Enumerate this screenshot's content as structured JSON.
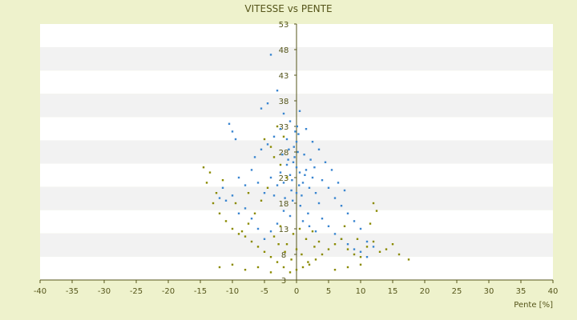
{
  "chart_data": {
    "type": "scatter",
    "title": "VITESSE vs PENTE",
    "xlabel": "Pente [%]",
    "ylabel": "",
    "xlim": [
      -40,
      40
    ],
    "ylim": [
      3,
      53
    ],
    "x_ticks": [
      -40,
      -35,
      -30,
      -25,
      -20,
      -15,
      -10,
      -5,
      0,
      5,
      10,
      15,
      20,
      25,
      30,
      35,
      40
    ],
    "y_ticks": [
      3,
      8,
      13,
      18,
      23,
      28,
      33,
      38,
      43,
      48,
      53
    ],
    "y_tick_labels": [
      "3",
      "8",
      "13",
      "18",
      "23",
      "28",
      "33",
      "38",
      "43",
      "48",
      "53"
    ],
    "grid": "alternating horizontal bands",
    "legend": "none",
    "colors": {
      "background": "#eef2cc",
      "band_light": "#ffffff",
      "band_dark": "#f2f2f2",
      "axis": "#55551a"
    },
    "series": [
      {
        "color": "#3a86d0",
        "points": [
          [
            0.0,
            25.0
          ],
          [
            0.5,
            24.0
          ],
          [
            -0.5,
            26.0
          ],
          [
            1.0,
            22.0
          ],
          [
            -1.0,
            23.5
          ],
          [
            0.2,
            28.0
          ],
          [
            -0.3,
            27.0
          ],
          [
            1.5,
            24.5
          ],
          [
            -1.5,
            25.5
          ],
          [
            2.0,
            21.0
          ],
          [
            -2.0,
            22.0
          ],
          [
            0.8,
            19.5
          ],
          [
            -0.8,
            20.5
          ],
          [
            2.5,
            23.0
          ],
          [
            -2.5,
            24.0
          ],
          [
            0.0,
            30.0
          ],
          [
            0.3,
            31.5
          ],
          [
            -0.4,
            29.0
          ],
          [
            1.2,
            27.5
          ],
          [
            -1.2,
            28.5
          ],
          [
            3.0,
            20.0
          ],
          [
            -3.0,
            21.5
          ],
          [
            0.6,
            17.5
          ],
          [
            -0.6,
            18.5
          ],
          [
            1.8,
            16.0
          ],
          [
            -1.8,
            19.0
          ],
          [
            4.0,
            22.5
          ],
          [
            -4.0,
            23.0
          ],
          [
            0.1,
            33.0
          ],
          [
            -0.2,
            32.0
          ],
          [
            2.2,
            26.5
          ],
          [
            -2.2,
            27.5
          ],
          [
            3.5,
            18.0
          ],
          [
            -3.5,
            19.5
          ],
          [
            5.0,
            21.0
          ],
          [
            -5.0,
            20.0
          ],
          [
            6.0,
            19.0
          ],
          [
            7.0,
            17.5
          ],
          [
            8.0,
            16.0
          ],
          [
            9.0,
            14.5
          ],
          [
            10.0,
            13.0
          ],
          [
            11.0,
            10.5
          ],
          [
            -6.0,
            22.0
          ],
          [
            -7.0,
            24.5
          ],
          [
            -8.0,
            21.5
          ],
          [
            -9.0,
            23.0
          ],
          [
            -10.0,
            19.5
          ],
          [
            -11.0,
            18.5
          ],
          [
            -11.5,
            21.0
          ],
          [
            -12.0,
            19.0
          ],
          [
            -10.5,
            33.5
          ],
          [
            -10.0,
            32.0
          ],
          [
            -9.5,
            30.5
          ],
          [
            -5.5,
            36.5
          ],
          [
            -4.5,
            37.5
          ],
          [
            -3.0,
            40.0
          ],
          [
            -4.0,
            47.0
          ],
          [
            -2.0,
            35.5
          ],
          [
            -1.0,
            34.0
          ],
          [
            0.5,
            36.0
          ],
          [
            1.5,
            32.5
          ],
          [
            2.5,
            30.0
          ],
          [
            3.5,
            28.5
          ],
          [
            4.5,
            26.0
          ],
          [
            5.5,
            24.5
          ],
          [
            6.5,
            22.0
          ],
          [
            7.5,
            20.5
          ],
          [
            4.0,
            15.0
          ],
          [
            5.0,
            13.5
          ],
          [
            6.0,
            12.0
          ],
          [
            7.0,
            11.0
          ],
          [
            8.0,
            10.0
          ],
          [
            9.0,
            9.0
          ],
          [
            10.0,
            8.5
          ],
          [
            11.0,
            7.5
          ],
          [
            12.0,
            9.5
          ],
          [
            3.0,
            12.5
          ],
          [
            2.0,
            13.5
          ],
          [
            1.0,
            14.5
          ],
          [
            -1.0,
            15.5
          ],
          [
            -2.0,
            16.5
          ],
          [
            -3.0,
            14.0
          ],
          [
            -4.0,
            12.5
          ],
          [
            -5.0,
            11.0
          ],
          [
            -6.0,
            13.0
          ],
          [
            -7.0,
            15.0
          ],
          [
            -8.0,
            17.0
          ],
          [
            -9.0,
            16.0
          ],
          [
            -6.5,
            27.0
          ],
          [
            -5.5,
            28.5
          ],
          [
            -4.5,
            29.5
          ],
          [
            -3.5,
            31.0
          ],
          [
            -2.5,
            32.5
          ],
          [
            -1.5,
            30.5
          ],
          [
            0.0,
            20.0
          ],
          [
            0.4,
            21.5
          ],
          [
            -0.7,
            22.5
          ],
          [
            1.3,
            23.5
          ],
          [
            -1.3,
            26.5
          ],
          [
            2.8,
            25.0
          ]
        ]
      },
      {
        "color": "#8a8a00",
        "points": [
          [
            0.0,
            5.0
          ],
          [
            1.0,
            5.5
          ],
          [
            -1.0,
            4.5
          ],
          [
            2.0,
            6.0
          ],
          [
            -2.0,
            5.5
          ],
          [
            3.0,
            7.0
          ],
          [
            -3.0,
            6.5
          ],
          [
            4.0,
            8.0
          ],
          [
            -4.0,
            7.5
          ],
          [
            5.0,
            9.0
          ],
          [
            -5.0,
            8.5
          ],
          [
            6.0,
            10.0
          ],
          [
            -6.0,
            9.5
          ],
          [
            7.0,
            11.0
          ],
          [
            -7.0,
            10.5
          ],
          [
            8.0,
            9.0
          ],
          [
            -8.0,
            11.5
          ],
          [
            9.0,
            8.0
          ],
          [
            -9.0,
            12.0
          ],
          [
            10.0,
            7.5
          ],
          [
            -10.0,
            13.0
          ],
          [
            11.0,
            9.5
          ],
          [
            -11.0,
            14.5
          ],
          [
            12.0,
            10.5
          ],
          [
            -12.0,
            16.0
          ],
          [
            13.0,
            8.5
          ],
          [
            14.0,
            9.0
          ],
          [
            15.0,
            10.0
          ],
          [
            16.0,
            8.0
          ],
          [
            17.5,
            7.0
          ],
          [
            -13.0,
            18.0
          ],
          [
            -14.0,
            22.0
          ],
          [
            -14.5,
            25.0
          ],
          [
            -13.5,
            24.0
          ],
          [
            -12.5,
            20.0
          ],
          [
            12.0,
            18.0
          ],
          [
            11.5,
            14.0
          ],
          [
            12.5,
            16.5
          ],
          [
            0.5,
            13.0
          ],
          [
            -0.5,
            12.0
          ],
          [
            1.5,
            11.0
          ],
          [
            -1.5,
            10.0
          ],
          [
            2.5,
            12.5
          ],
          [
            -2.5,
            13.5
          ],
          [
            3.5,
            10.5
          ],
          [
            -3.5,
            11.5
          ],
          [
            0.0,
            9.0
          ],
          [
            0.8,
            8.0
          ],
          [
            -0.8,
            7.0
          ],
          [
            1.8,
            6.5
          ],
          [
            -1.8,
            8.5
          ],
          [
            2.8,
            9.5
          ],
          [
            -2.8,
            10.0
          ],
          [
            -3.0,
            33.0
          ],
          [
            -2.0,
            31.0
          ],
          [
            -4.0,
            29.0
          ],
          [
            -5.0,
            30.5
          ],
          [
            -3.5,
            27.0
          ],
          [
            -2.5,
            25.5
          ],
          [
            -1.5,
            23.0
          ],
          [
            -4.5,
            21.0
          ],
          [
            -5.5,
            18.5
          ],
          [
            -6.5,
            16.0
          ],
          [
            -7.5,
            14.0
          ],
          [
            -8.5,
            12.5
          ],
          [
            -12.0,
            5.5
          ],
          [
            -10.0,
            6.0
          ],
          [
            -8.0,
            5.0
          ],
          [
            -6.0,
            5.5
          ],
          [
            -4.0,
            4.5
          ],
          [
            6.0,
            5.0
          ],
          [
            8.0,
            5.5
          ],
          [
            10.0,
            6.0
          ],
          [
            7.5,
            13.5
          ],
          [
            9.5,
            11.0
          ],
          [
            -9.5,
            18.0
          ],
          [
            -7.5,
            20.0
          ],
          [
            -11.5,
            22.5
          ]
        ]
      }
    ]
  }
}
